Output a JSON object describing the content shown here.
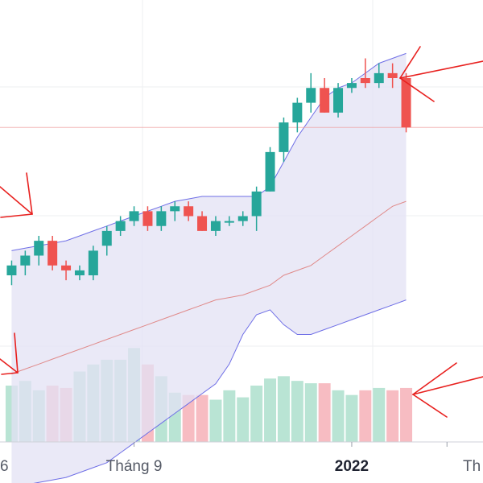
{
  "colors": {
    "up": "#26a69a",
    "down": "#ef5350",
    "up_volume": "#b9e4d4",
    "down_volume": "#f7bcc2",
    "band_fill": "#e3e2f4",
    "band_line": "#6e6ee6",
    "middle_line": "#e08a8a",
    "price_line": "#f0a0a0",
    "arrow": "#e8201e",
    "grid": "#eeeff2"
  },
  "chart_data": {
    "type": "candlestick",
    "x_ticks": [
      {
        "label": "6",
        "bold": false,
        "candle_index": -3
      },
      {
        "label": "Tháng 9",
        "bold": false,
        "candle_index": 9
      },
      {
        "label": "2022",
        "bold": true,
        "candle_index": 25
      },
      {
        "label": "Th",
        "bold": false,
        "candle_index": 32
      }
    ],
    "last_price": 100,
    "price_range": [
      38,
      118
    ],
    "candles": [
      {
        "o": 70,
        "h": 73,
        "l": 68,
        "c": 72,
        "v": 24
      },
      {
        "o": 72,
        "h": 75,
        "l": 70,
        "c": 74,
        "v": 26
      },
      {
        "o": 74,
        "h": 78,
        "l": 72,
        "c": 77,
        "v": 22
      },
      {
        "o": 77,
        "h": 78,
        "l": 71,
        "c": 72,
        "v": 24
      },
      {
        "o": 72,
        "h": 73,
        "l": 69,
        "c": 71,
        "v": 23
      },
      {
        "o": 70,
        "h": 72,
        "l": 69,
        "c": 71,
        "v": 30
      },
      {
        "o": 70,
        "h": 76,
        "l": 69,
        "c": 75,
        "v": 33
      },
      {
        "o": 76,
        "h": 80,
        "l": 74,
        "c": 79,
        "v": 35
      },
      {
        "o": 79,
        "h": 82,
        "l": 78,
        "c": 81,
        "v": 35
      },
      {
        "o": 81,
        "h": 84,
        "l": 80,
        "c": 83,
        "v": 40
      },
      {
        "o": 83,
        "h": 84,
        "l": 79,
        "c": 80,
        "v": 33
      },
      {
        "o": 80,
        "h": 84,
        "l": 79,
        "c": 83,
        "v": 28
      },
      {
        "o": 83,
        "h": 85,
        "l": 81,
        "c": 84,
        "v": 21
      },
      {
        "o": 84,
        "h": 85,
        "l": 81,
        "c": 82,
        "v": 20
      },
      {
        "o": 82,
        "h": 83,
        "l": 79,
        "c": 79,
        "v": 20
      },
      {
        "o": 79,
        "h": 82,
        "l": 78,
        "c": 81,
        "v": 18
      },
      {
        "o": 81,
        "h": 82,
        "l": 80,
        "c": 81,
        "v": 22
      },
      {
        "o": 81,
        "h": 83,
        "l": 80,
        "c": 82,
        "v": 19
      },
      {
        "o": 82,
        "h": 88,
        "l": 79,
        "c": 87,
        "v": 24
      },
      {
        "o": 87,
        "h": 96,
        "l": 87,
        "c": 95,
        "v": 27
      },
      {
        "o": 95,
        "h": 102,
        "l": 93,
        "c": 101,
        "v": 28
      },
      {
        "o": 101,
        "h": 106,
        "l": 99,
        "c": 105,
        "v": 26
      },
      {
        "o": 105,
        "h": 111,
        "l": 103,
        "c": 108,
        "v": 25
      },
      {
        "o": 108,
        "h": 110,
        "l": 103,
        "c": 103,
        "v": 25
      },
      {
        "o": 103,
        "h": 109,
        "l": 102,
        "c": 108,
        "v": 22
      },
      {
        "o": 108,
        "h": 110,
        "l": 107,
        "c": 109,
        "v": 20
      },
      {
        "o": 110,
        "h": 114,
        "l": 108,
        "c": 109,
        "v": 22
      },
      {
        "o": 109,
        "h": 113,
        "l": 108,
        "c": 111,
        "v": 23
      },
      {
        "o": 111,
        "h": 113,
        "l": 108,
        "c": 110,
        "v": 22
      },
      {
        "o": 110,
        "h": 111,
        "l": 99,
        "c": 100,
        "v": 23
      }
    ],
    "bollinger_upper": [
      75,
      75.5,
      76,
      76.5,
      77,
      78,
      79,
      80,
      81,
      82,
      83,
      84,
      85,
      85.5,
      86,
      86,
      86,
      86,
      86,
      88,
      93,
      98,
      102,
      106,
      108,
      109,
      111,
      113,
      114,
      115
    ],
    "bollinger_middle": [
      50,
      51,
      52,
      53,
      54,
      55,
      56,
      57,
      58,
      59,
      60,
      61,
      62,
      63,
      64,
      65,
      65.5,
      66,
      67,
      68,
      70,
      71,
      72,
      74,
      76,
      78,
      80,
      82,
      84,
      85
    ],
    "bollinger_lower": [
      27,
      27.5,
      28,
      28.5,
      29,
      30,
      31,
      32,
      34,
      36,
      38,
      40,
      42,
      44,
      46,
      48,
      52,
      58,
      62,
      63,
      60,
      58,
      58,
      59,
      60,
      61,
      62,
      63,
      64,
      65
    ],
    "volume_max": 48,
    "annotations": [
      {
        "type": "arrow",
        "target": "top-right candle"
      },
      {
        "type": "arrow",
        "target": "left candle cluster"
      },
      {
        "type": "arrow",
        "target": "lower-left volume"
      },
      {
        "type": "arrow",
        "target": "last volume bar"
      }
    ]
  }
}
